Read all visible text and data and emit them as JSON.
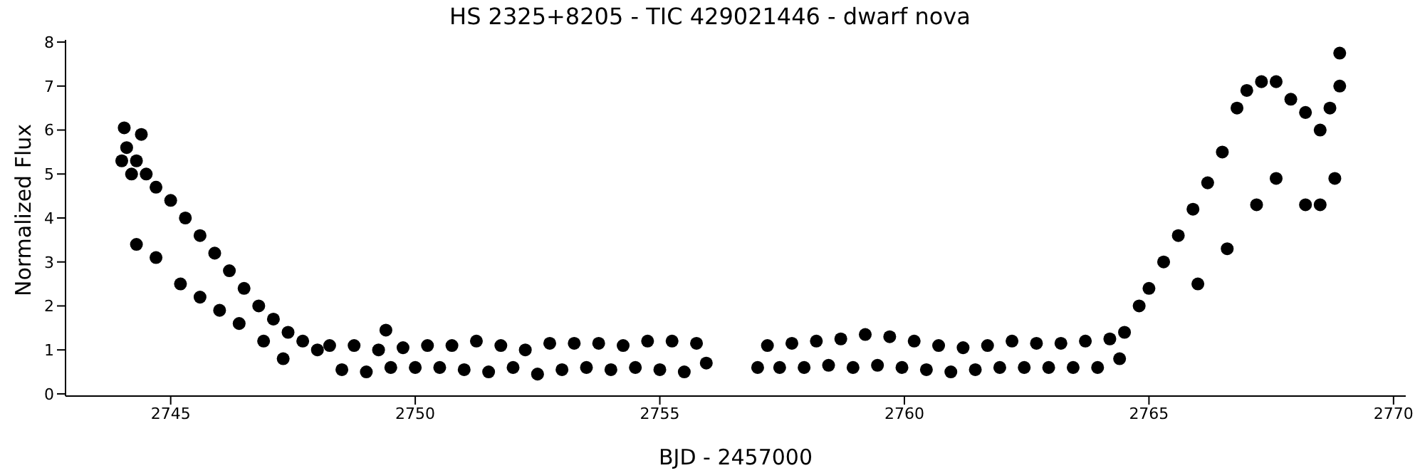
{
  "chart_data": {
    "type": "scatter",
    "title": "HS 2325+8205 - TIC 429021446 - dwarf nova",
    "xlabel": "BJD - 2457000",
    "ylabel": "Normalized Flux",
    "x": [
      2744.0,
      2744.05,
      2744.1,
      2744.2,
      2744.3,
      2744.4,
      2744.5,
      2744.7,
      2745.0,
      2745.3,
      2745.6,
      2745.9,
      2746.2,
      2746.5,
      2746.8,
      2747.1,
      2747.4,
      2747.7,
      2748.0,
      2744.3,
      2744.7,
      2745.2,
      2745.6,
      2746.0,
      2746.4,
      2746.9,
      2747.3,
      2748.25,
      2748.5,
      2748.75,
      2749.0,
      2749.25,
      2749.4,
      2749.5,
      2749.75,
      2750.0,
      2750.25,
      2750.5,
      2750.75,
      2751.0,
      2751.25,
      2751.5,
      2751.75,
      2752.0,
      2752.25,
      2752.5,
      2752.75,
      2753.0,
      2753.25,
      2753.5,
      2753.75,
      2754.0,
      2754.25,
      2754.5,
      2754.75,
      2755.0,
      2755.25,
      2755.5,
      2755.75,
      2755.95,
      2757.0,
      2757.2,
      2757.45,
      2757.7,
      2757.95,
      2758.2,
      2758.45,
      2758.7,
      2758.95,
      2759.2,
      2759.45,
      2759.7,
      2759.95,
      2760.2,
      2760.45,
      2760.7,
      2760.95,
      2761.2,
      2761.45,
      2761.7,
      2761.95,
      2762.2,
      2762.45,
      2762.7,
      2762.95,
      2763.2,
      2763.45,
      2763.7,
      2763.95,
      2764.2,
      2764.4,
      2764.5,
      2764.8,
      2765.0,
      2765.3,
      2765.6,
      2765.9,
      2766.2,
      2766.5,
      2766.8,
      2767.0,
      2767.3,
      2767.6,
      2767.9,
      2768.2,
      2768.5,
      2768.7,
      2768.9,
      2768.9,
      2766.0,
      2766.6,
      2767.2,
      2767.6,
      2768.2,
      2768.5,
      2768.8
    ],
    "values": [
      5.3,
      6.05,
      5.6,
      5.0,
      5.3,
      5.9,
      5.0,
      4.7,
      4.4,
      4.0,
      3.6,
      3.2,
      2.8,
      2.4,
      2.0,
      1.7,
      1.4,
      1.2,
      1.0,
      3.4,
      3.1,
      2.5,
      2.2,
      1.9,
      1.6,
      1.2,
      0.8,
      1.1,
      0.55,
      1.1,
      0.5,
      1.0,
      1.45,
      0.6,
      1.05,
      0.6,
      1.1,
      0.6,
      1.1,
      0.55,
      1.2,
      0.5,
      1.1,
      0.6,
      1.0,
      0.45,
      1.15,
      0.55,
      1.15,
      0.6,
      1.15,
      0.55,
      1.1,
      0.6,
      1.2,
      0.55,
      1.2,
      0.5,
      1.15,
      0.7,
      0.6,
      1.1,
      0.6,
      1.15,
      0.6,
      1.2,
      0.65,
      1.25,
      0.6,
      1.35,
      0.65,
      1.3,
      0.6,
      1.2,
      0.55,
      1.1,
      0.5,
      1.05,
      0.55,
      1.1,
      0.6,
      1.2,
      0.6,
      1.15,
      0.6,
      1.15,
      0.6,
      1.2,
      0.6,
      1.25,
      0.8,
      1.4,
      2.0,
      2.4,
      3.0,
      3.6,
      4.2,
      4.8,
      5.5,
      6.5,
      6.9,
      7.1,
      7.1,
      6.7,
      6.4,
      6.0,
      6.5,
      7.0,
      7.75,
      2.5,
      3.3,
      4.3,
      4.9,
      4.3,
      4.3,
      4.9
    ],
    "color": "#000000",
    "marker": "circle",
    "xlim": [
      2742.85,
      2770.25
    ],
    "ylim": [
      -0.05,
      8.05
    ],
    "xticks": [
      2745,
      2750,
      2755,
      2760,
      2765,
      2770
    ],
    "yticks": [
      0,
      1,
      2,
      3,
      4,
      5,
      6,
      7,
      8
    ]
  }
}
